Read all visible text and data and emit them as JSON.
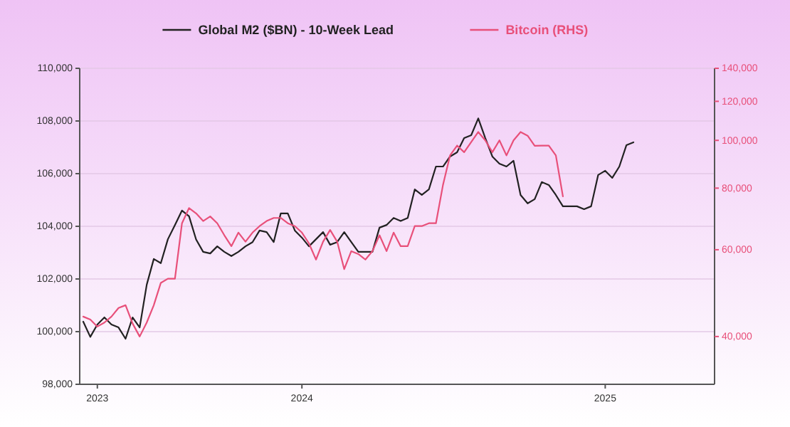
{
  "chart_data": {
    "type": "line",
    "categories": [
      null,
      null,
      "2023",
      null,
      null,
      null,
      null,
      null,
      null,
      null,
      null,
      null,
      null,
      null,
      null,
      null,
      null,
      null,
      null,
      null,
      null,
      null,
      null,
      null,
      null,
      null,
      null,
      null,
      null,
      null,
      null,
      "2024",
      null,
      null,
      null,
      null,
      null,
      null,
      null,
      null,
      null,
      null,
      null,
      null,
      null,
      null,
      null,
      null,
      null,
      null,
      null,
      null,
      null,
      null,
      null,
      null,
      null,
      null,
      null,
      null,
      null,
      null,
      null,
      null,
      null,
      null,
      null,
      null,
      null,
      null,
      null,
      null,
      null,
      null,
      "2025",
      null,
      null,
      null,
      null,
      null,
      null,
      null,
      null,
      null,
      null,
      null,
      null,
      null,
      null,
      null
    ],
    "series": [
      {
        "name": "Global M2 ($BN) - 10-Week Lead",
        "color": "#222222",
        "values": [
          100380,
          99800,
          100270,
          100540,
          100270,
          100160,
          99730,
          100540,
          100160,
          101780,
          102760,
          102600,
          103510,
          104050,
          104600,
          104380,
          103500,
          103030,
          102970,
          103240,
          103030,
          102870,
          103030,
          103240,
          103400,
          103840,
          103780,
          103400,
          104490,
          104490,
          103840,
          103570,
          103240,
          103510,
          103780,
          103300,
          103400,
          103780,
          103400,
          103030,
          103030,
          103030,
          103950,
          104050,
          104320,
          104200,
          104320,
          105400,
          105190,
          105400,
          106270,
          106270,
          106650,
          106810,
          107350,
          107460,
          108100,
          107350,
          106650,
          106380,
          106270,
          106490,
          105190,
          104870,
          105030,
          105680,
          105570,
          105190,
          104760,
          104760,
          104760,
          104650,
          104760,
          105950,
          106110,
          105840,
          106270,
          107080,
          107190,
          null,
          null,
          null,
          null,
          null,
          null,
          null,
          null,
          null,
          null,
          null
        ]
      },
      {
        "name": "Bitcoin (RHS)",
        "color": "#e8507a",
        "axis": "y2",
        "values": [
          43900,
          43300,
          41900,
          42700,
          43900,
          45700,
          46300,
          42500,
          40000,
          42700,
          46300,
          51400,
          52400,
          52400,
          67900,
          72900,
          71100,
          68600,
          70100,
          67900,
          64200,
          61000,
          65000,
          62300,
          65000,
          67000,
          68600,
          69600,
          69600,
          67900,
          67000,
          65000,
          61800,
          57300,
          62300,
          65800,
          62300,
          54800,
          59600,
          58800,
          57300,
          59600,
          64200,
          59600,
          65000,
          61000,
          61000,
          67000,
          67000,
          67900,
          67900,
          81200,
          93200,
          97600,
          94600,
          99200,
          104000,
          100000,
          94600,
          100000,
          93200,
          100000,
          104000,
          102200,
          97500,
          97600,
          97600,
          93200,
          77000,
          null,
          null,
          null,
          null,
          null,
          null,
          null,
          null,
          null,
          null,
          null,
          null,
          null,
          null,
          null,
          null,
          null,
          null,
          null,
          null,
          null
        ]
      }
    ],
    "ylim": [
      98000,
      110000
    ],
    "yticks": [
      {
        "value": 98000,
        "label": "98,000"
      },
      {
        "value": 100000,
        "label": "100,000"
      },
      {
        "value": 102000,
        "label": "102,000"
      },
      {
        "value": 104000,
        "label": "104,000"
      },
      {
        "value": 106000,
        "label": "106,000"
      },
      {
        "value": 108000,
        "label": "108,000"
      },
      {
        "value": 110000,
        "label": "110,000"
      }
    ],
    "y2lim": [
      32000,
      140000
    ],
    "y2ticks": [
      {
        "value": 40000,
        "label": "40,000"
      },
      {
        "value": 60000,
        "label": "60,000"
      },
      {
        "value": 80000,
        "label": "80,000"
      },
      {
        "value": 100000,
        "label": "100,000"
      },
      {
        "value": 120000,
        "label": "120,000"
      },
      {
        "value": 140000,
        "label": "140,000"
      }
    ],
    "log": "y2",
    "grid": "y",
    "legend": "top"
  }
}
